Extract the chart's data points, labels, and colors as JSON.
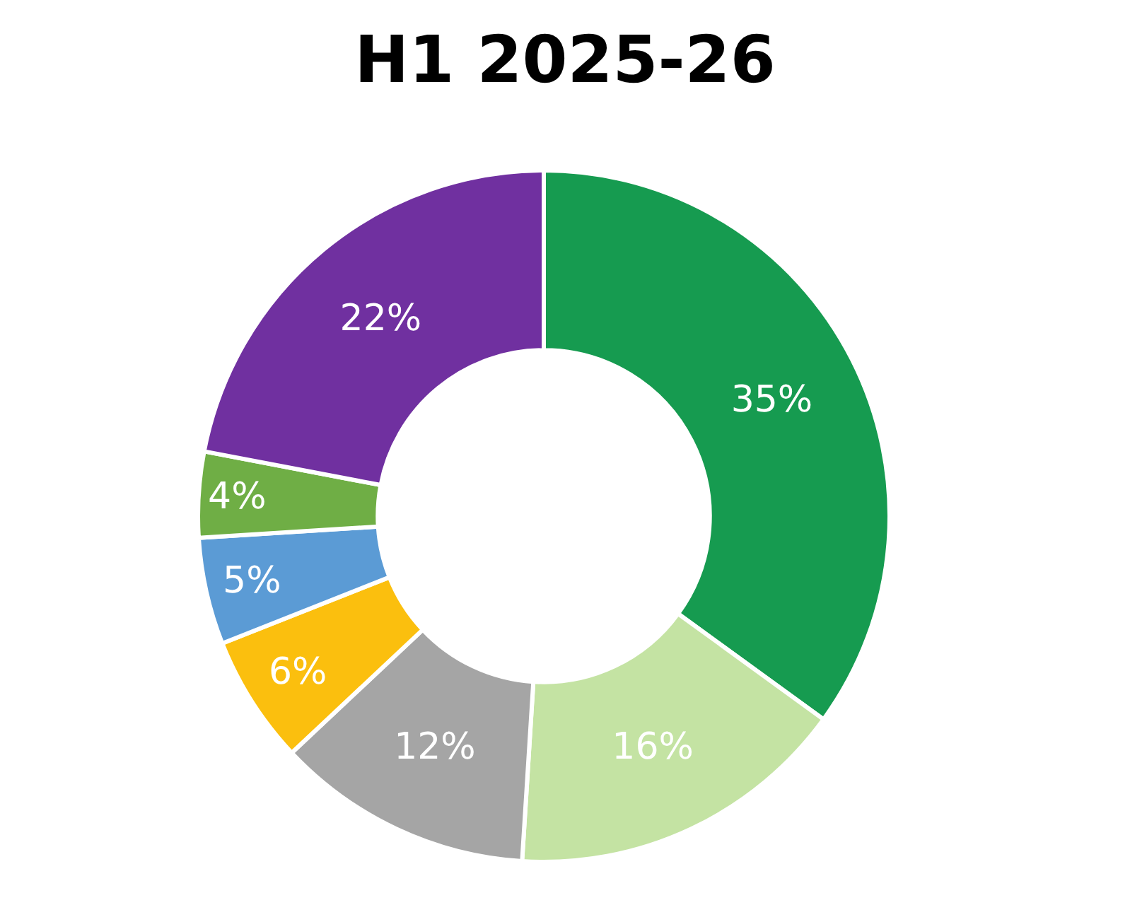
{
  "chart_data": {
    "type": "donut",
    "title": "H1 2025-26",
    "categories": [
      null,
      null,
      null,
      null,
      null,
      null,
      null
    ],
    "values": [
      35,
      16,
      12,
      6,
      5,
      4,
      22
    ],
    "value_labels": [
      "35%",
      "16%",
      "12%",
      "6%",
      "5%",
      "4%",
      "22%"
    ],
    "colors": [
      "#169b50",
      "#c4e3a3",
      "#a5a5a5",
      "#fbbf0e",
      "#5b9bd5",
      "#6fae45",
      "#7030a0"
    ],
    "legend": false
  }
}
